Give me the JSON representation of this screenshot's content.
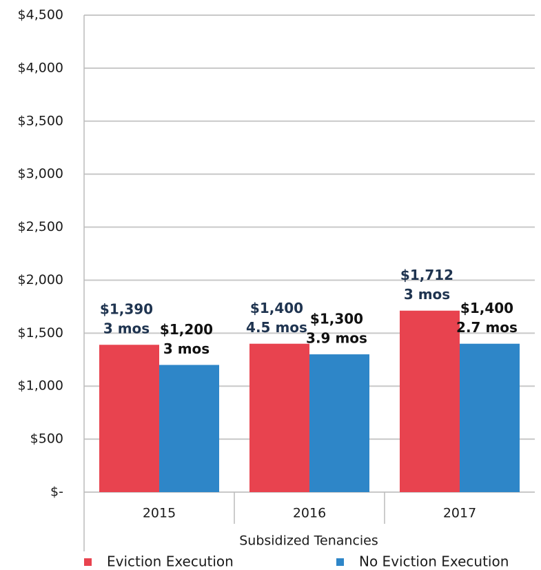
{
  "chart_data": {
    "type": "bar",
    "x_label": "Subsidized Tenancies",
    "categories": [
      "2015",
      "2016",
      "2017"
    ],
    "series": [
      {
        "name": "Eviction Execution",
        "color": "#e8434f",
        "label_color": "#1f3450",
        "values": [
          1390,
          1400,
          1712
        ],
        "value_labels": [
          "$1,390",
          "$1,400",
          "$1,712"
        ],
        "durations": [
          "3 mos",
          "4.5 mos",
          "3 mos"
        ]
      },
      {
        "name": "No Eviction Execution",
        "color": "#2e86c8",
        "label_color": "#111111",
        "values": [
          1200,
          1300,
          1400
        ],
        "value_labels": [
          "$1,200",
          "$1,300",
          "$1,400"
        ],
        "durations": [
          "3 mos",
          "3.9 mos",
          "2.7 mos"
        ]
      }
    ],
    "ylim": [
      0,
      4500
    ],
    "yticks": [
      {
        "value": 0,
        "label": "$-"
      },
      {
        "value": 500,
        "label": "$500"
      },
      {
        "value": 1000,
        "label": "$1,000"
      },
      {
        "value": 1500,
        "label": "$1,500"
      },
      {
        "value": 2000,
        "label": "$2,000"
      },
      {
        "value": 2500,
        "label": "$2,500"
      },
      {
        "value": 3000,
        "label": "$3,000"
      },
      {
        "value": 3500,
        "label": "$3,500"
      },
      {
        "value": 4000,
        "label": "$4,000"
      },
      {
        "value": 4500,
        "label": "$4,500"
      }
    ],
    "grid": true,
    "legend": "bottom"
  }
}
